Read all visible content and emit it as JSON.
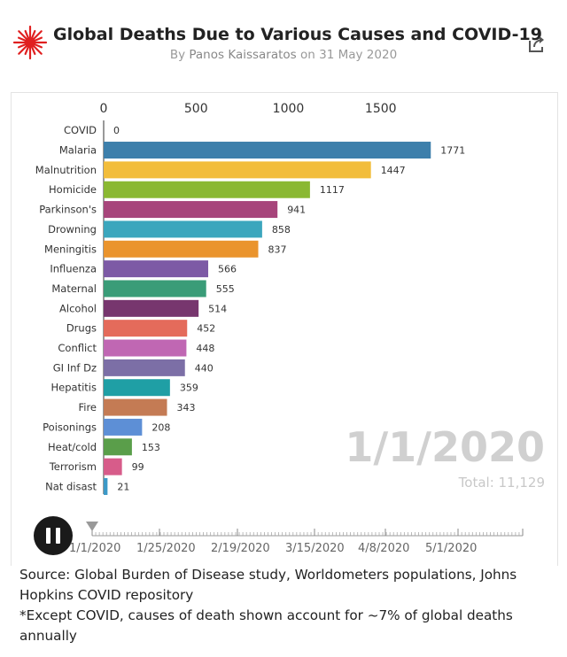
{
  "header": {
    "title": "Global Deaths Due to Various Causes and COVID-19",
    "byline_prefix": "By",
    "author": "Panos Kaissaratos",
    "date_prefix": "on",
    "date": "31 May 2020",
    "share_icon": "share-icon",
    "logo_icon": "red-burst-logo-icon"
  },
  "colors": {
    "logo": "#e02020",
    "axis": "#333333",
    "big_date": "#d0d0d0"
  },
  "chart_data": {
    "type": "bar",
    "orientation": "horizontal",
    "title": "Global Deaths Due to Various Causes and COVID-19",
    "xlim": [
      0,
      1900
    ],
    "x_ticks": [
      0,
      500,
      1000,
      1500
    ],
    "x_tick_labels": [
      "0",
      "500",
      "1000",
      "1500"
    ],
    "categories": [
      "COVID",
      "Malaria",
      "Malnutrition",
      "Homicide",
      "Parkinson's",
      "Drowning",
      "Meningitis",
      "Influenza",
      "Maternal",
      "Alcohol",
      "Drugs",
      "Conflict",
      "GI Inf Dz",
      "Hepatitis",
      "Fire",
      "Poisonings",
      "Heat/cold",
      "Terrorism",
      "Nat disast"
    ],
    "values": [
      0,
      1771,
      1447,
      1117,
      941,
      858,
      837,
      566,
      555,
      514,
      452,
      448,
      440,
      359,
      343,
      208,
      153,
      99,
      21
    ],
    "value_labels": [
      "0",
      "1771",
      "1447",
      "1117",
      "941",
      "858",
      "837",
      "566",
      "555",
      "514",
      "452",
      "448",
      "440",
      "359",
      "343",
      "208",
      "153",
      "99",
      "21"
    ],
    "bar_colors": [
      "#c0392b",
      "#3d7fab",
      "#f2bd3b",
      "#8ab832",
      "#a7457b",
      "#3ba6bd",
      "#ea942d",
      "#7d5aa5",
      "#3a9c78",
      "#77366e",
      "#e46b5b",
      "#c067b3",
      "#7c6fa6",
      "#1f9fa5",
      "#c47b54",
      "#5d8fd6",
      "#5a9e4a",
      "#d75c8a",
      "#3c99c7"
    ],
    "current_date": "1/1/2020",
    "total_label": "Total: 11,129",
    "legend": "none",
    "grid": false
  },
  "timeline": {
    "dates": [
      "1/1/2020",
      "1/25/2020",
      "2/19/2020",
      "3/15/2020",
      "4/8/2020",
      "5/1/2020"
    ],
    "play_state": "pause",
    "progress": 0
  },
  "footer": {
    "source": "Source: Global Burden of Disease study, Worldometers populations, Johns Hopkins COVID repository",
    "note": "*Except COVID, causes of death shown account for ~7% of global deaths annually"
  }
}
